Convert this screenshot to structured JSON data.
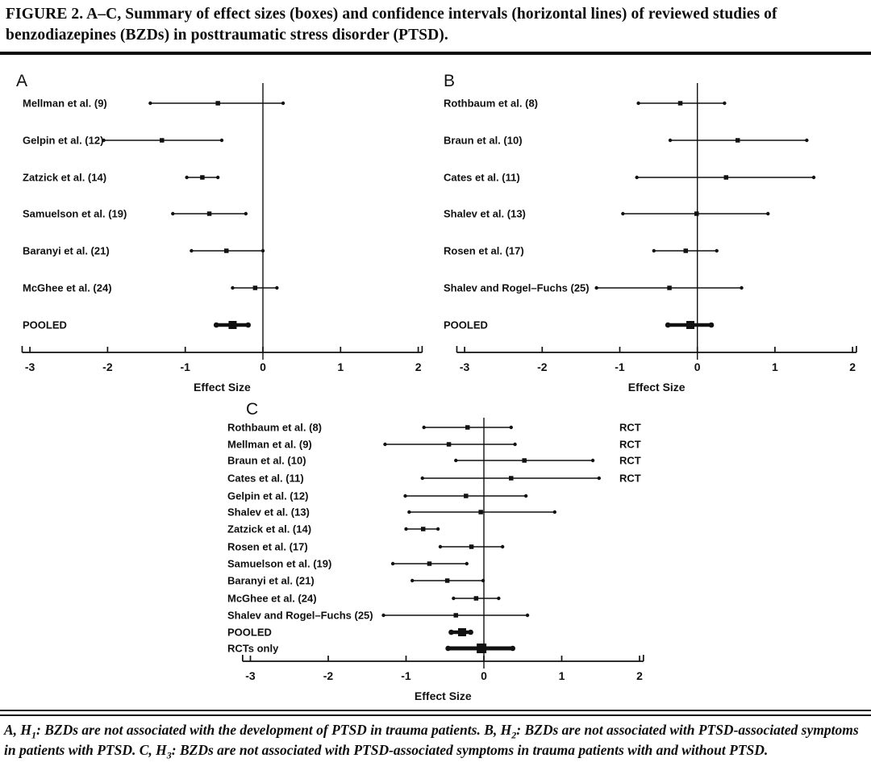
{
  "figure": {
    "title": "FIGURE 2. A–C, Summary of effect sizes (boxes) and confidence intervals (horizontal lines) of reviewed studies of benzodiazepines (BZDs) in posttraumatic stress disorder (PTSD).",
    "caption_segments": [
      {
        "text": "A, H"
      },
      {
        "sub": "1"
      },
      {
        "text": ": BZDs are not associated with the development of PTSD in trauma patients. B, H"
      },
      {
        "sub": "2"
      },
      {
        "text": ": BZDs are not associated with PTSD-associated symptoms in patients with PTSD. C, H"
      },
      {
        "sub": "3"
      },
      {
        "text": ": BZDs are not associated with PTSD-associated symptoms in trauma patients with and without PTSD."
      }
    ]
  },
  "colors": {
    "ink": "#111111",
    "background": "#ffffff"
  },
  "chart_data": [
    {
      "type": "forest",
      "panel": "A",
      "xlabel": "Effect Size",
      "xticks": [
        -3,
        -2,
        -1,
        0,
        1,
        2
      ],
      "xlim": [
        -3.1,
        2.05
      ],
      "zero_line": 0,
      "studies": [
        {
          "label": "Mellman et al. (9)",
          "es": -0.58,
          "lo": -1.45,
          "hi": 0.26
        },
        {
          "label": "Gelpin et al. (12)",
          "es": -1.3,
          "lo": -2.05,
          "hi": -0.53
        },
        {
          "label": "Zatzick et al. (14)",
          "es": -0.78,
          "lo": -0.98,
          "hi": -0.58
        },
        {
          "label": "Samuelson et al. (19)",
          "es": -0.69,
          "lo": -1.16,
          "hi": -0.22
        },
        {
          "label": "Baranyi et al. (21)",
          "es": -0.47,
          "lo": -0.92,
          "hi": 0.0
        },
        {
          "label": "McGhee et al. (24)",
          "es": -0.1,
          "lo": -0.39,
          "hi": 0.18
        },
        {
          "label": "POOLED",
          "es": -0.39,
          "lo": -0.6,
          "hi": -0.19,
          "pooled": true
        }
      ]
    },
    {
      "type": "forest",
      "panel": "B",
      "xlabel": "Effect Size",
      "xticks": [
        -3,
        -2,
        -1,
        0,
        1,
        2
      ],
      "xlim": [
        -3.1,
        2.05
      ],
      "zero_line": 0,
      "studies": [
        {
          "label": "Rothbaum et al. (8)",
          "es": -0.22,
          "lo": -0.76,
          "hi": 0.35
        },
        {
          "label": "Braun et al. (10)",
          "es": 0.52,
          "lo": -0.35,
          "hi": 1.41
        },
        {
          "label": "Cates et al. (11)",
          "es": 0.37,
          "lo": -0.78,
          "hi": 1.5
        },
        {
          "label": "Shalev et al. (13)",
          "es": -0.01,
          "lo": -0.96,
          "hi": 0.91
        },
        {
          "label": "Rosen et al. (17)",
          "es": -0.15,
          "lo": -0.56,
          "hi": 0.25
        },
        {
          "label": "Shalev and Rogel–Fuchs (25)",
          "es": -0.36,
          "lo": -1.3,
          "hi": 0.57
        },
        {
          "label": "POOLED",
          "es": -0.09,
          "lo": -0.38,
          "hi": 0.18,
          "pooled": true
        }
      ]
    },
    {
      "type": "forest",
      "panel": "C",
      "xlabel": "Effect Size",
      "xticks": [
        -3,
        -2,
        -1,
        0,
        1,
        2
      ],
      "xlim": [
        -3.1,
        2.05
      ],
      "zero_line": 0,
      "studies": [
        {
          "label": "Rothbaum et al. (8)",
          "es": -0.21,
          "lo": -0.77,
          "hi": 0.35,
          "annotation": "RCT"
        },
        {
          "label": "Mellman et al. (9)",
          "es": -0.45,
          "lo": -1.27,
          "hi": 0.4,
          "annotation": "RCT"
        },
        {
          "label": "Braun et al. (10)",
          "es": 0.52,
          "lo": -0.36,
          "hi": 1.4,
          "annotation": "RCT"
        },
        {
          "label": "Cates et al. (11)",
          "es": 0.35,
          "lo": -0.79,
          "hi": 1.48,
          "annotation": "RCT"
        },
        {
          "label": "Gelpin et al. (12)",
          "es": -0.23,
          "lo": -1.01,
          "hi": 0.54
        },
        {
          "label": "Shalev et al. (13)",
          "es": -0.04,
          "lo": -0.96,
          "hi": 0.91
        },
        {
          "label": "Zatzick et al. (14)",
          "es": -0.78,
          "lo": -1.0,
          "hi": -0.59
        },
        {
          "label": "Rosen et al. (17)",
          "es": -0.16,
          "lo": -0.56,
          "hi": 0.24
        },
        {
          "label": "Samuelson et al. (19)",
          "es": -0.7,
          "lo": -1.17,
          "hi": -0.22
        },
        {
          "label": "Baranyi et al. (21)",
          "es": -0.47,
          "lo": -0.92,
          "hi": -0.01
        },
        {
          "label": "McGhee et al. (24)",
          "es": -0.1,
          "lo": -0.39,
          "hi": 0.19
        },
        {
          "label": "Shalev and Rogel–Fuchs (25)",
          "es": -0.36,
          "lo": -1.29,
          "hi": 0.56
        },
        {
          "label": "POOLED",
          "es": -0.28,
          "lo": -0.42,
          "hi": -0.17,
          "pooled": true
        },
        {
          "label": "RCTs only",
          "es": -0.03,
          "lo": -0.46,
          "hi": 0.37,
          "pooled": true,
          "heavy": true
        }
      ]
    }
  ]
}
